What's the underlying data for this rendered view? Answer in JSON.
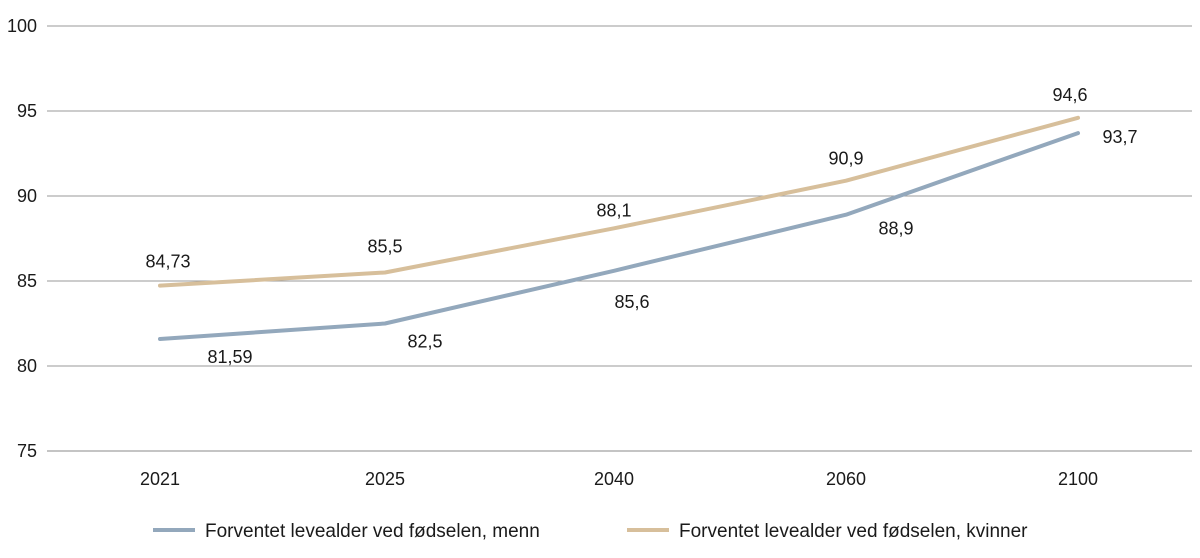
{
  "chart_data": {
    "type": "line",
    "categories": [
      "2021",
      "2025",
      "2040",
      "2060",
      "2100"
    ],
    "series": [
      {
        "name": "Forventet levealder ved fødselen, menn",
        "color": "#93a8bc",
        "values": [
          81.59,
          82.5,
          85.6,
          88.9,
          93.7
        ],
        "labels": [
          "81,59",
          "82,5",
          "85,6",
          "88,9",
          "93,7"
        ]
      },
      {
        "name": "Forventet levealder ved fødselen, kvinner",
        "color": "#d7bf9b",
        "values": [
          84.73,
          85.5,
          88.1,
          90.9,
          94.6
        ],
        "labels": [
          "84,73",
          "85,5",
          "88,1",
          "90,9",
          "94,6"
        ]
      }
    ],
    "ylim": [
      75,
      100
    ],
    "yticks": [
      "75",
      "80",
      "85",
      "90",
      "95",
      "100"
    ],
    "ytick_values": [
      75,
      80,
      85,
      90,
      95,
      100
    ],
    "grid": true,
    "legend_position": "bottom",
    "title": "",
    "xlabel": "",
    "ylabel": ""
  }
}
